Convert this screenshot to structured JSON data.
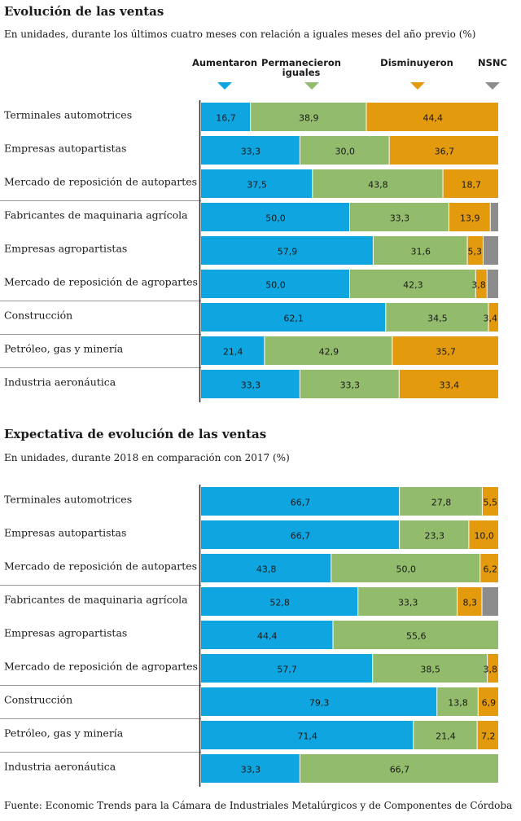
{
  "colors": {
    "aumentaron": "#0ea5e0",
    "permanecieron": "#92bc6c",
    "disminuyeron": "#e39a0d",
    "nsnc": "#8c8c8c",
    "divider": "#9a9a9a",
    "axis": "#222222"
  },
  "legend": [
    {
      "key": "aumentaron",
      "label": "Aumentaron"
    },
    {
      "key": "permanecieron",
      "label": "Permanecieron iguales"
    },
    {
      "key": "disminuyeron",
      "label": "Disminuyeron"
    },
    {
      "key": "nsnc",
      "label": "NSNC"
    }
  ],
  "source": "Fuente: Economic Trends para la Cámara de Industriales Metalúrgicos y de Componentes de Córdoba",
  "chart_data": [
    {
      "type": "bar",
      "stacked": true,
      "orientation": "horizontal",
      "title": "Evolución de las ventas",
      "subtitle": "En unidades,  durante los últimos cuatro meses con relación a iguales meses del año previo (%)",
      "xlim": [
        0,
        100
      ],
      "categories": [
        "Terminales automotrices",
        "Empresas autopartistas",
        "Mercado de reposición de autopartes",
        "Fabricantes de maquinaria agrícola",
        "Empresas agropartistas",
        "Mercado de reposición de agropartes",
        "Construcción",
        "Petróleo, gas y minería",
        "Industria aeronáutica"
      ],
      "series": [
        {
          "name": "Aumentaron",
          "key": "aumentaron",
          "values": [
            16.7,
            33.3,
            37.5,
            50.0,
            57.9,
            50.0,
            62.1,
            21.4,
            33.3
          ]
        },
        {
          "name": "Permanecieron iguales",
          "key": "permanecieron",
          "values": [
            38.9,
            30.0,
            43.8,
            33.3,
            31.6,
            42.3,
            34.5,
            42.9,
            33.3
          ]
        },
        {
          "name": "Disminuyeron",
          "key": "disminuyeron",
          "values": [
            44.4,
            36.7,
            18.7,
            13.9,
            5.3,
            3.8,
            3.4,
            35.7,
            33.4
          ]
        },
        {
          "name": "NSNC",
          "key": "nsnc",
          "values": [
            0,
            0,
            0,
            2.8,
            5.2,
            3.9,
            0,
            0,
            0
          ]
        }
      ],
      "labels": [
        [
          "16,7",
          "38,9",
          "44,4",
          ""
        ],
        [
          "33,3",
          "30,0",
          "36,7",
          ""
        ],
        [
          "37,5",
          "43,8",
          "18,7",
          ""
        ],
        [
          "50,0",
          "33,3",
          "13,9",
          ""
        ],
        [
          "57,9",
          "31,6",
          "5,3",
          ""
        ],
        [
          "50,0",
          "42,3",
          "3,8",
          ""
        ],
        [
          "62,1",
          "34,5",
          "3,4",
          ""
        ],
        [
          "21,4",
          "42,9",
          "35,7",
          ""
        ],
        [
          "33,3",
          "33,3",
          "33,4",
          ""
        ]
      ]
    },
    {
      "type": "bar",
      "stacked": true,
      "orientation": "horizontal",
      "title": "Expectativa de evolución de las ventas",
      "subtitle": "En unidades, durante 2018 en comparación con 2017 (%)",
      "xlim": [
        0,
        100
      ],
      "categories": [
        "Terminales automotrices",
        "Empresas autopartistas",
        "Mercado de reposición de autopartes",
        "Fabricantes de maquinaria agrícola",
        "Empresas agropartistas",
        "Mercado de reposición de agropartes",
        "Construcción",
        "Petróleo, gas y minería",
        "Industria aeronáutica"
      ],
      "series": [
        {
          "name": "Aumentaron",
          "key": "aumentaron",
          "values": [
            66.7,
            66.7,
            43.8,
            52.8,
            44.4,
            57.7,
            79.3,
            71.4,
            33.3
          ]
        },
        {
          "name": "Permanecieron iguales",
          "key": "permanecieron",
          "values": [
            27.8,
            23.3,
            50.0,
            33.3,
            55.6,
            38.5,
            13.8,
            21.4,
            66.7
          ]
        },
        {
          "name": "Disminuyeron",
          "key": "disminuyeron",
          "values": [
            5.5,
            10.0,
            6.2,
            8.3,
            0,
            3.8,
            6.9,
            7.2,
            0
          ]
        },
        {
          "name": "NSNC",
          "key": "nsnc",
          "values": [
            0,
            0,
            0,
            5.6,
            0,
            0,
            0,
            0,
            0
          ]
        }
      ],
      "labels": [
        [
          "66,7",
          "27,8",
          "5,5",
          ""
        ],
        [
          "66,7",
          "23,3",
          "10,0",
          ""
        ],
        [
          "43,8",
          "50,0",
          "6,2",
          ""
        ],
        [
          "52,8",
          "33,3",
          "8,3",
          ""
        ],
        [
          "44,4",
          "55,6",
          "",
          ""
        ],
        [
          "57,7",
          "38,5",
          "3,8",
          ""
        ],
        [
          "79,3",
          "13,8",
          "6,9",
          ""
        ],
        [
          "71,4",
          "21,4",
          "7,2",
          ""
        ],
        [
          "33,3",
          "66,7",
          "",
          ""
        ]
      ]
    }
  ]
}
